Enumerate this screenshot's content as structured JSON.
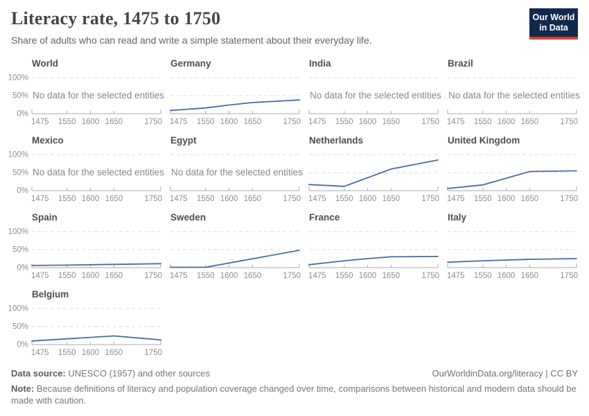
{
  "header": {
    "title": "Literacy rate, 1475 to 1750",
    "subtitle": "Share of adults who can read and write a simple statement about their everyday life.",
    "logo": {
      "line1": "Our World",
      "line2": "in Data",
      "bg_color": "#12294e",
      "accent_color": "#dc3c31"
    }
  },
  "chart_data": {
    "type": "line",
    "title": "Literacy rate, 1475 to 1750",
    "xlabel": "",
    "ylabel": "",
    "x_range": [
      1475,
      1750
    ],
    "x_ticks": [
      1475,
      1550,
      1600,
      1650,
      1750
    ],
    "y_range": [
      0,
      100
    ],
    "y_tick_labels": [
      "0%",
      "50%",
      "100%"
    ],
    "grid": "dashed horizontal at 50% and 100%",
    "legend_position": "none",
    "line_color": "#4a6aa5",
    "no_data_label": "No data for the selected entities",
    "facets": [
      {
        "name": "World",
        "no_data": true
      },
      {
        "name": "Germany",
        "no_data": false,
        "points": [
          [
            1475,
            9
          ],
          [
            1550,
            16
          ],
          [
            1600,
            24
          ],
          [
            1650,
            31
          ],
          [
            1750,
            38
          ]
        ]
      },
      {
        "name": "India",
        "no_data": true
      },
      {
        "name": "Brazil",
        "no_data": true
      },
      {
        "name": "Mexico",
        "no_data": true
      },
      {
        "name": "Egypt",
        "no_data": true
      },
      {
        "name": "Netherlands",
        "no_data": false,
        "points": [
          [
            1475,
            17
          ],
          [
            1550,
            12
          ],
          [
            1650,
            60
          ],
          [
            1750,
            85
          ]
        ]
      },
      {
        "name": "United Kingdom",
        "no_data": false,
        "points": [
          [
            1475,
            6
          ],
          [
            1550,
            16
          ],
          [
            1650,
            53
          ],
          [
            1750,
            55
          ]
        ]
      },
      {
        "name": "Spain",
        "no_data": false,
        "points": [
          [
            1475,
            6
          ],
          [
            1550,
            7
          ],
          [
            1600,
            8
          ],
          [
            1650,
            9
          ],
          [
            1750,
            11
          ]
        ]
      },
      {
        "name": "Sweden",
        "no_data": false,
        "points": [
          [
            1475,
            1
          ],
          [
            1550,
            1
          ],
          [
            1750,
            48
          ]
        ]
      },
      {
        "name": "France",
        "no_data": false,
        "points": [
          [
            1475,
            8
          ],
          [
            1550,
            19
          ],
          [
            1600,
            25
          ],
          [
            1650,
            30
          ],
          [
            1750,
            31
          ]
        ]
      },
      {
        "name": "Italy",
        "no_data": false,
        "points": [
          [
            1475,
            15
          ],
          [
            1550,
            19
          ],
          [
            1650,
            23
          ],
          [
            1750,
            25
          ]
        ]
      },
      {
        "name": "Belgium",
        "no_data": false,
        "points": [
          [
            1475,
            10
          ],
          [
            1550,
            16
          ],
          [
            1600,
            20
          ],
          [
            1650,
            24
          ],
          [
            1750,
            13
          ]
        ]
      }
    ]
  },
  "footer": {
    "source_label": "Data source:",
    "source_value": " UNESCO (1957) and other sources",
    "license": "OurWorldinData.org/literacy | CC BY",
    "note_label": "Note:",
    "note_value": " Because definitions of literacy and population coverage changed over time, comparisons between historical and modern data should be made with caution."
  }
}
